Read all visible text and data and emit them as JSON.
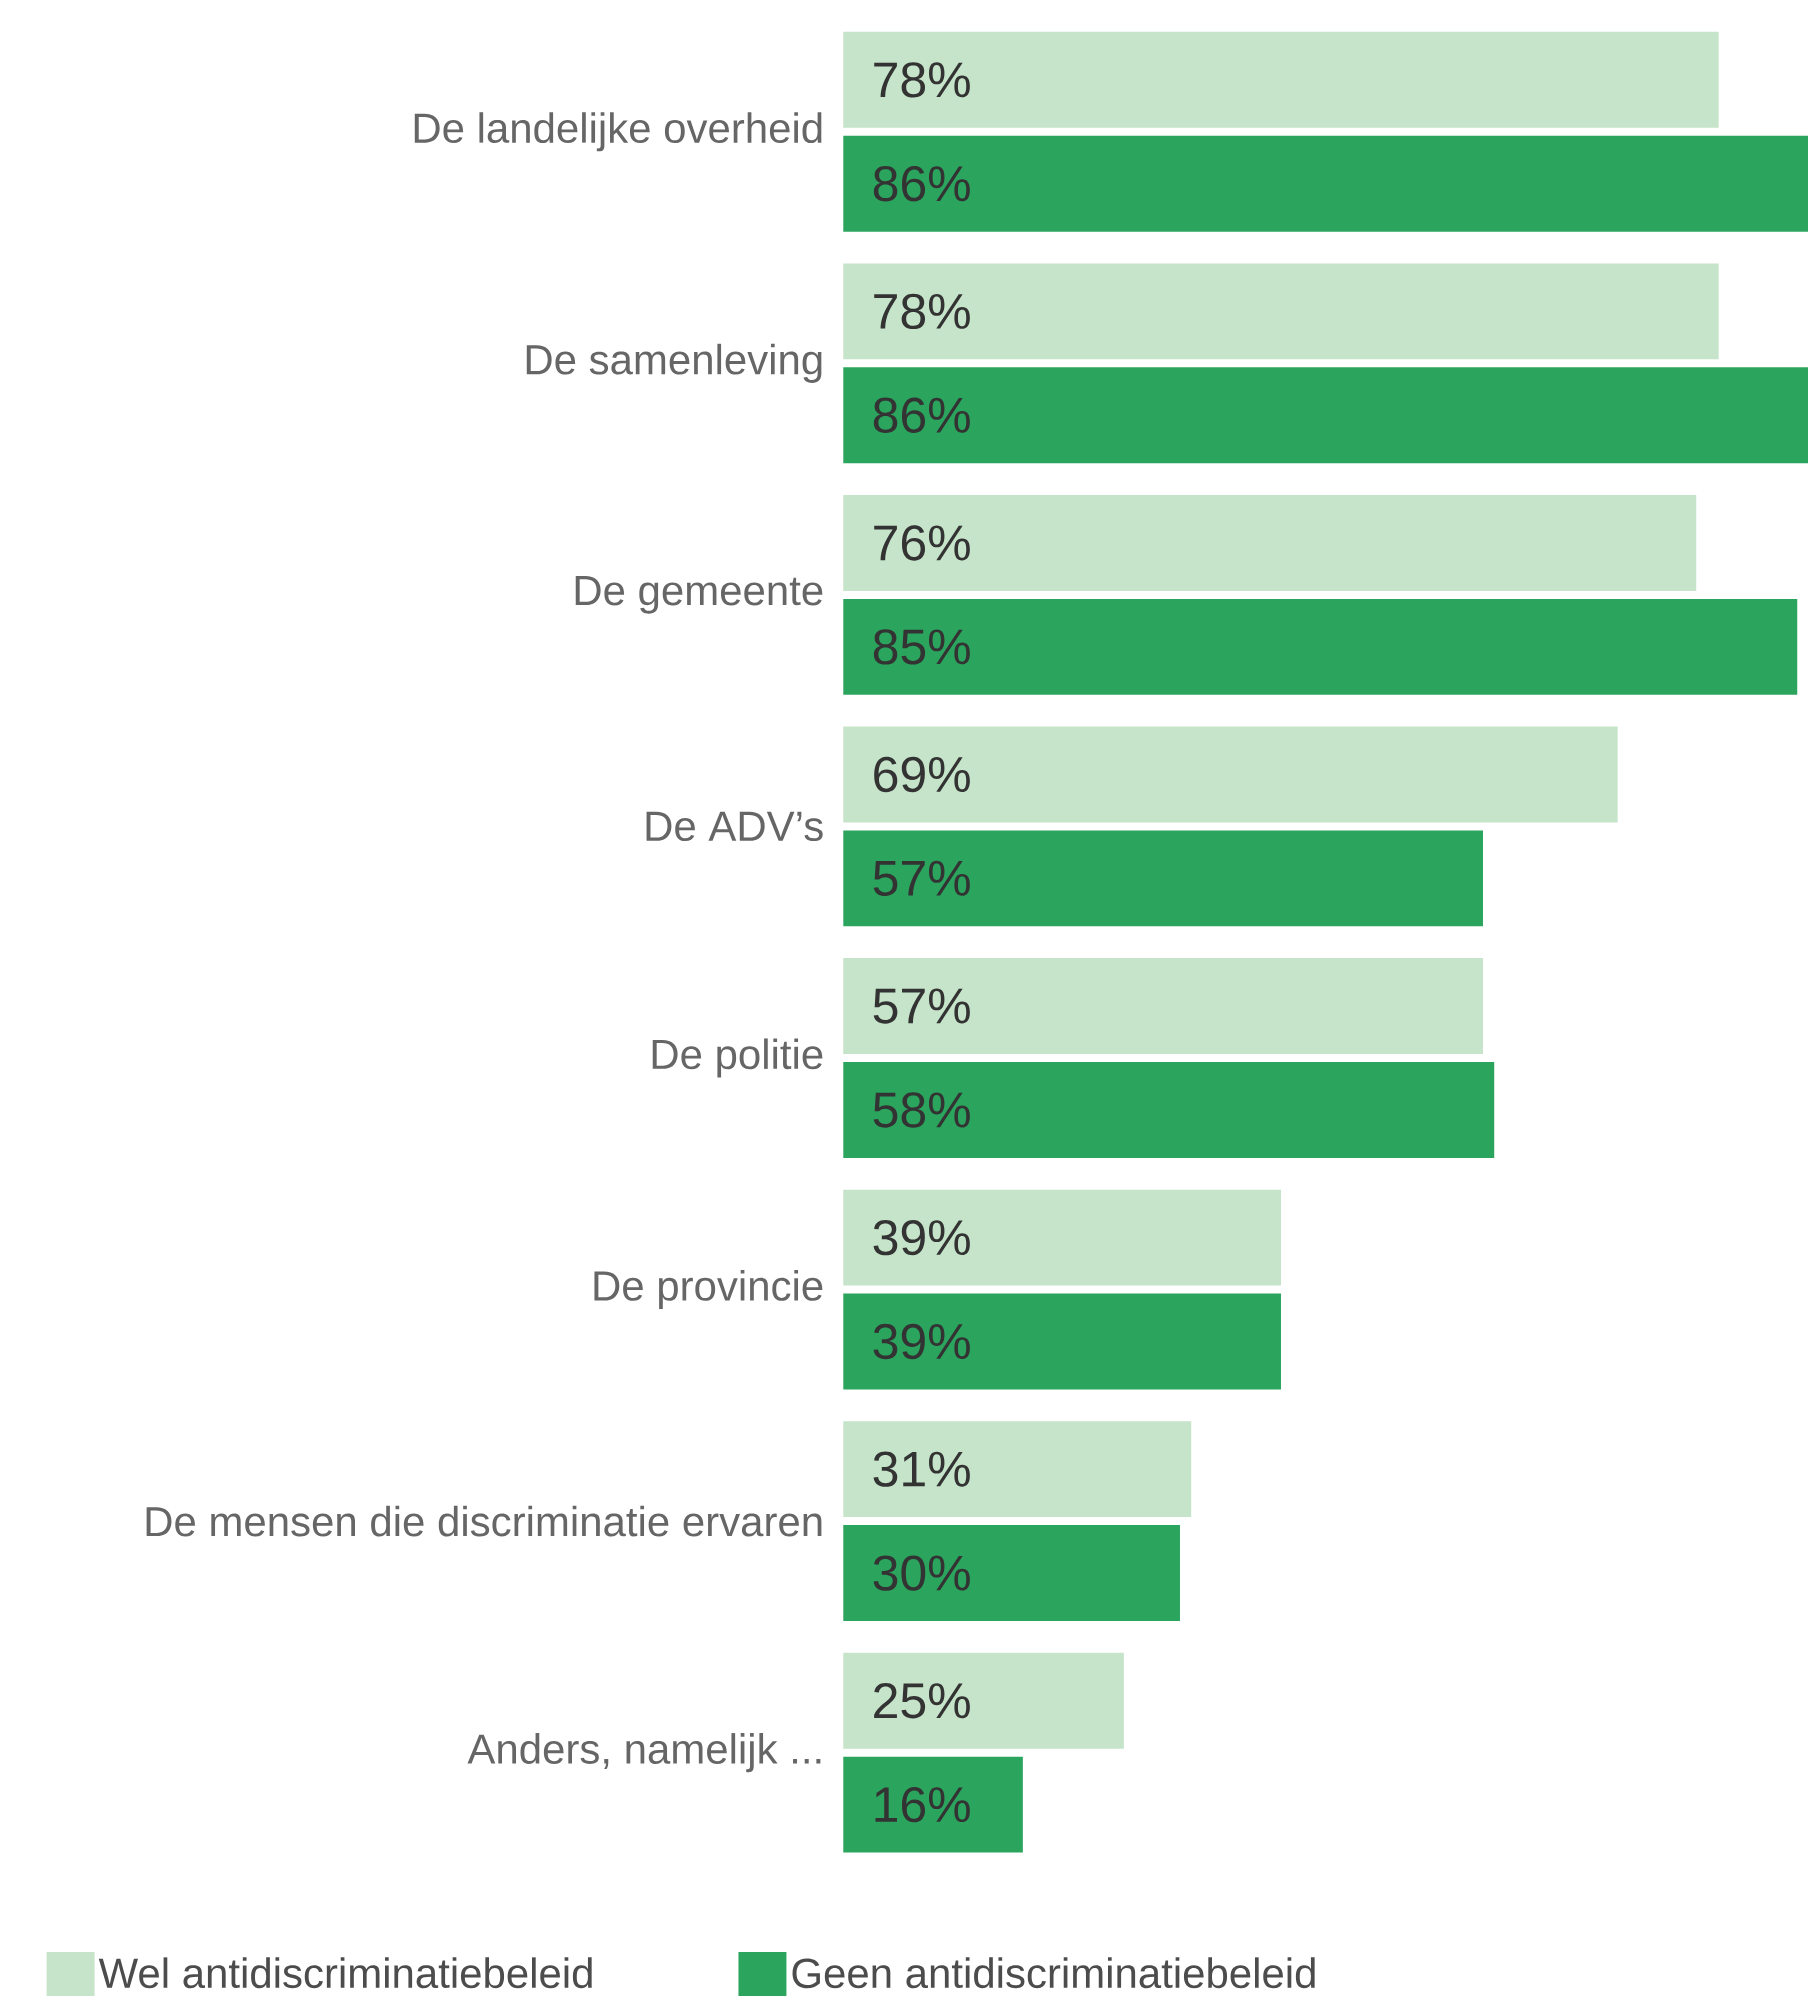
{
  "chart_data": {
    "type": "bar",
    "orientation": "horizontal",
    "legend": "bottom",
    "categories": [
      "De landelijke overheid",
      "De samenleving",
      "De gemeente",
      "De ADV’s",
      "De politie",
      "De provincie",
      "De mensen die discriminatie ervaren",
      "Anders, namelijk ..."
    ],
    "series": [
      {
        "name": "Wel antidiscriminatiebeleid",
        "color": "#c5e4c9",
        "values": [
          78,
          78,
          76,
          69,
          57,
          39,
          31,
          25
        ],
        "value_labels": [
          "78%",
          "78%",
          "76%",
          "69%",
          "57%",
          "39%",
          "31%",
          "25%"
        ]
      },
      {
        "name": "Geen antidiscriminatiebeleid",
        "color": "#2ba55e",
        "values": [
          86,
          86,
          85,
          57,
          58,
          39,
          30,
          16
        ],
        "value_labels": [
          "86%",
          "86%",
          "85%",
          "57%",
          "58%",
          "39%",
          "30%",
          "16%"
        ]
      }
    ]
  }
}
